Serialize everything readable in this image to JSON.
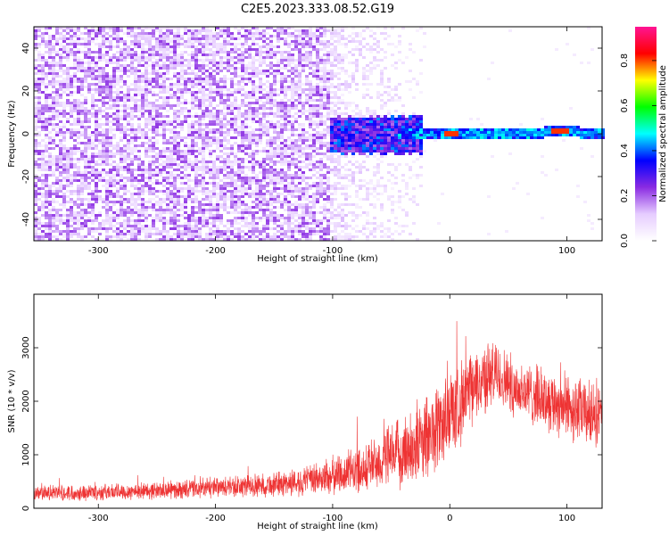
{
  "chart_data": [
    {
      "type": "heatmap",
      "title": "C2E5.2023.333.08.52.G19",
      "xlabel": "Height of straight line (km)",
      "ylabel": "Frequency (Hz)",
      "xlim": [
        -355,
        130
      ],
      "ylim": [
        -50,
        50
      ],
      "xticks": [
        -300,
        -200,
        -100,
        0,
        100
      ],
      "yticks": [
        -40,
        -20,
        0,
        20,
        40
      ],
      "colorbar": {
        "label": "Normalized spectral amplitude",
        "range": [
          0,
          0.95
        ],
        "ticks": [
          0.0,
          0.2,
          0.4,
          0.6,
          0.8
        ],
        "colors": [
          "#ffffff",
          "#e6ccff",
          "#8a2be2",
          "#0000ff",
          "#00ffff",
          "#00ff00",
          "#ffff00",
          "#ff0000",
          "#ff1493"
        ]
      },
      "description_regions": [
        {
          "x_range": [
            -355,
            -105
          ],
          "freq_band": [
            -50,
            50
          ],
          "level": 0.1
        },
        {
          "x_range": [
            -105,
            -20
          ],
          "freq_band": [
            -50,
            50
          ],
          "level": 0.05
        },
        {
          "x_range": [
            -100,
            -20
          ],
          "freq_band": [
            -8,
            8
          ],
          "level": 0.35
        },
        {
          "x_range": [
            -20,
            130
          ],
          "freq_band": [
            -2,
            3
          ],
          "level": 0.45
        }
      ]
    },
    {
      "type": "line",
      "xlabel": "Height of straight line (km)",
      "ylabel": "SNR (10 * v/v)",
      "xlim": [
        -355,
        130
      ],
      "ylim": [
        0,
        4000
      ],
      "xticks": [
        -300,
        -200,
        -100,
        0,
        100
      ],
      "yticks": [
        0,
        1000,
        2000,
        3000
      ],
      "color": "#ee3333",
      "envelope": {
        "x": [
          -355,
          -300,
          -250,
          -200,
          -150,
          -120,
          -100,
          -80,
          -60,
          -40,
          -20,
          0,
          10,
          20,
          30,
          40,
          50,
          60,
          80,
          100,
          120,
          130
        ],
        "mean": [
          280,
          300,
          330,
          380,
          440,
          520,
          600,
          720,
          860,
          1050,
          1300,
          1750,
          2000,
          2250,
          2450,
          2500,
          2350,
          2200,
          2050,
          1900,
          1750,
          1650
        ],
        "spread": [
          150,
          160,
          170,
          200,
          240,
          300,
          380,
          450,
          550,
          700,
          850,
          900,
          800,
          700,
          700,
          650,
          600,
          600,
          600,
          650,
          650,
          650
        ]
      }
    }
  ]
}
